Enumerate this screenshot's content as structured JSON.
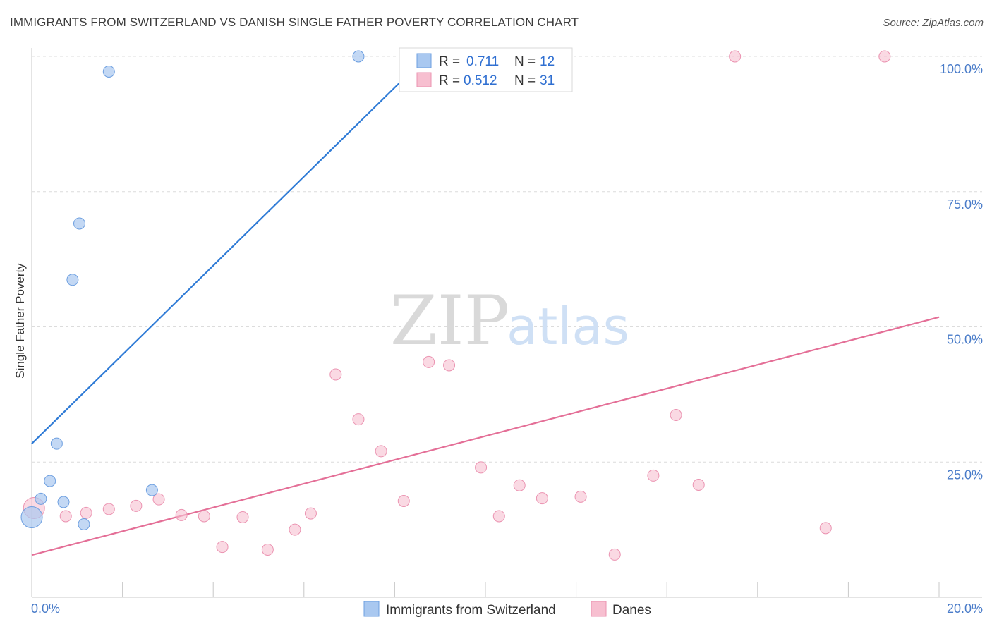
{
  "title": "IMMIGRANTS FROM SWITZERLAND VS DANISH SINGLE FATHER POVERTY CORRELATION CHART",
  "source": "Source: ZipAtlas.com",
  "watermark": {
    "zip": "ZIP",
    "atlas": "atlas"
  },
  "colors": {
    "blue": "#a9c8f0",
    "blue_line": "#2f7bd6",
    "pink": "#f7bfd0",
    "pink_line": "#e46f97",
    "tick": "#4a7cc9"
  },
  "legend": {
    "rows": [
      {
        "r_label": "R =",
        "r_value": "0.711",
        "n_label": "N =",
        "n_value": "12"
      },
      {
        "r_label": "R =",
        "r_value": "0.512",
        "n_label": "N =",
        "n_value": "31"
      }
    ]
  },
  "bottom_legend": [
    "Immigrants from Switzerland",
    "Danes"
  ],
  "chart_data": {
    "type": "scatter",
    "ylabel": "Single Father Poverty",
    "xlim": [
      0,
      20
    ],
    "ylim": [
      0,
      100
    ],
    "x_tick_labels": [
      "0.0%",
      "20.0%"
    ],
    "y_tick_labels": [
      "25.0%",
      "50.0%",
      "75.0%",
      "100.0%"
    ],
    "y_ticks": [
      25,
      50,
      75,
      100
    ],
    "grid": true,
    "legend_position": "top-center",
    "series": [
      {
        "name": "Immigrants from Switzerland",
        "color": "#a9c8f0",
        "points": [
          [
            0.0,
            14.8
          ],
          [
            0.2,
            18.2
          ],
          [
            0.4,
            21.5
          ],
          [
            0.55,
            28.4
          ],
          [
            0.7,
            17.6
          ],
          [
            0.9,
            58.7
          ],
          [
            1.05,
            69.1
          ],
          [
            1.15,
            13.5
          ],
          [
            1.7,
            97.2
          ],
          [
            2.65,
            19.8
          ],
          [
            7.2,
            100.0
          ],
          [
            10.4,
            100.0
          ]
        ],
        "trend": {
          "x1": 0.0,
          "y1": 28.4,
          "x2": 8.7,
          "y2": 100.0
        }
      },
      {
        "name": "Danes",
        "color": "#f7bfd0",
        "points": [
          [
            0.05,
            16.5
          ],
          [
            0.75,
            15.0
          ],
          [
            1.2,
            15.6
          ],
          [
            1.7,
            16.3
          ],
          [
            2.3,
            16.9
          ],
          [
            2.8,
            18.1
          ],
          [
            3.3,
            15.2
          ],
          [
            3.8,
            15.0
          ],
          [
            4.2,
            9.3
          ],
          [
            4.65,
            14.8
          ],
          [
            5.2,
            8.8
          ],
          [
            5.8,
            12.5
          ],
          [
            6.15,
            15.5
          ],
          [
            6.7,
            41.2
          ],
          [
            7.2,
            32.9
          ],
          [
            7.7,
            27.0
          ],
          [
            8.2,
            17.8
          ],
          [
            8.75,
            43.5
          ],
          [
            9.2,
            42.9
          ],
          [
            9.9,
            24.0
          ],
          [
            10.3,
            15.0
          ],
          [
            10.75,
            20.7
          ],
          [
            11.25,
            18.3
          ],
          [
            12.1,
            18.6
          ],
          [
            12.85,
            7.9
          ],
          [
            13.7,
            22.5
          ],
          [
            14.2,
            33.7
          ],
          [
            14.7,
            20.8
          ],
          [
            15.5,
            100.0
          ],
          [
            17.5,
            12.8
          ],
          [
            18.8,
            100.0
          ]
        ],
        "trend": {
          "x1": 0.0,
          "y1": 7.8,
          "x2": 20.0,
          "y2": 51.8
        }
      }
    ]
  }
}
